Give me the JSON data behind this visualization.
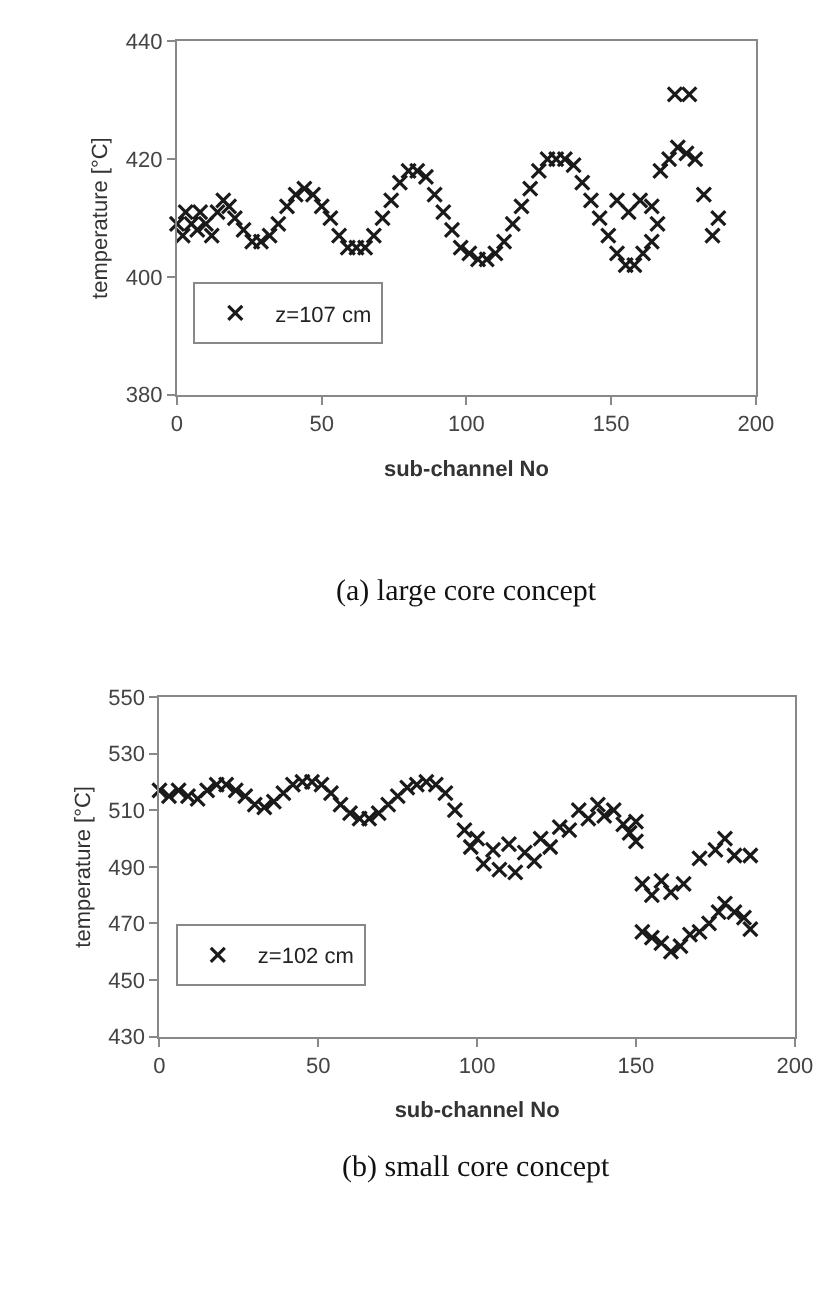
{
  "chart_data": [
    {
      "type": "scatter",
      "xlabel": "sub-channel No",
      "ylabel": "temperature [°C]",
      "xlim": [
        0,
        200
      ],
      "xticks": [
        0,
        50,
        100,
        150,
        200
      ],
      "ylim": [
        380,
        440
      ],
      "yticks": [
        380,
        400,
        420,
        440
      ],
      "legend": "bottom left",
      "marker": "cross",
      "annotations": [
        "(a) large core concept"
      ],
      "series": [
        {
          "name": "z=107 cm",
          "color": "#1a1a1a",
          "x": [
            0,
            2,
            3,
            5,
            7,
            8,
            10,
            12,
            14,
            16,
            18,
            20,
            23,
            26,
            29,
            32,
            35,
            38,
            41,
            44,
            47,
            50,
            53,
            56,
            59,
            62,
            65,
            68,
            71,
            74,
            77,
            80,
            83,
            86,
            89,
            92,
            95,
            98,
            101,
            104,
            107,
            110,
            113,
            116,
            119,
            122,
            125,
            128,
            131,
            134,
            137,
            140,
            143,
            146,
            149,
            152,
            155,
            158,
            161,
            164,
            152,
            156,
            160,
            164,
            166,
            167,
            170,
            173,
            176,
            179,
            182,
            185,
            187,
            172,
            177
          ],
          "values": [
            409,
            407,
            411,
            409,
            408,
            411,
            409,
            407,
            411,
            413,
            412,
            410,
            408,
            406,
            406,
            407,
            409,
            412,
            414,
            415,
            414,
            412,
            410,
            407,
            405,
            405,
            405,
            407,
            410,
            413,
            416,
            418,
            418,
            417,
            414,
            411,
            408,
            405,
            404,
            403,
            403,
            404,
            406,
            409,
            412,
            415,
            418,
            420,
            420,
            420,
            419,
            416,
            413,
            410,
            407,
            404,
            402,
            402,
            404,
            406,
            413,
            411,
            413,
            412,
            409,
            418,
            420,
            422,
            421,
            420,
            414,
            407,
            410,
            431,
            431
          ]
        }
      ]
    },
    {
      "type": "scatter",
      "xlabel": "sub-channel No",
      "ylabel": "temperature [°C]",
      "xlim": [
        0,
        200
      ],
      "xticks": [
        0,
        50,
        100,
        150,
        200
      ],
      "ylim": [
        430,
        550
      ],
      "yticks": [
        430,
        450,
        470,
        490,
        510,
        530,
        550
      ],
      "legend": "bottom left",
      "marker": "cross",
      "annotations": [
        "(b) small core concept"
      ],
      "series": [
        {
          "name": "z=102 cm",
          "color": "#1a1a1a",
          "x": [
            0,
            3,
            6,
            9,
            12,
            15,
            18,
            21,
            24,
            27,
            30,
            33,
            36,
            39,
            42,
            45,
            48,
            51,
            54,
            57,
            60,
            63,
            66,
            69,
            72,
            75,
            78,
            81,
            84,
            87,
            90,
            93,
            96,
            98,
            100,
            102,
            105,
            107,
            110,
            112,
            115,
            118,
            120,
            123,
            126,
            129,
            132,
            135,
            138,
            140,
            143,
            146,
            148,
            150,
            150,
            152,
            155,
            158,
            161,
            165,
            170,
            175,
            178,
            181,
            186,
            152,
            155,
            158,
            161,
            164,
            167,
            170,
            173,
            176,
            178,
            181,
            184,
            186
          ],
          "values": [
            517,
            515,
            517,
            515,
            514,
            517,
            519,
            519,
            517,
            515,
            512,
            511,
            513,
            516,
            519,
            520,
            520,
            519,
            516,
            512,
            509,
            507,
            507,
            509,
            512,
            515,
            518,
            519,
            520,
            519,
            516,
            510,
            503,
            497,
            500,
            491,
            496,
            489,
            498,
            488,
            495,
            492,
            500,
            497,
            504,
            503,
            510,
            507,
            512,
            508,
            510,
            505,
            502,
            506,
            499,
            484,
            480,
            485,
            481,
            484,
            493,
            496,
            500,
            494,
            494,
            467,
            465,
            463,
            460,
            462,
            466,
            467,
            470,
            474,
            477,
            474,
            472,
            468
          ]
        }
      ]
    }
  ]
}
